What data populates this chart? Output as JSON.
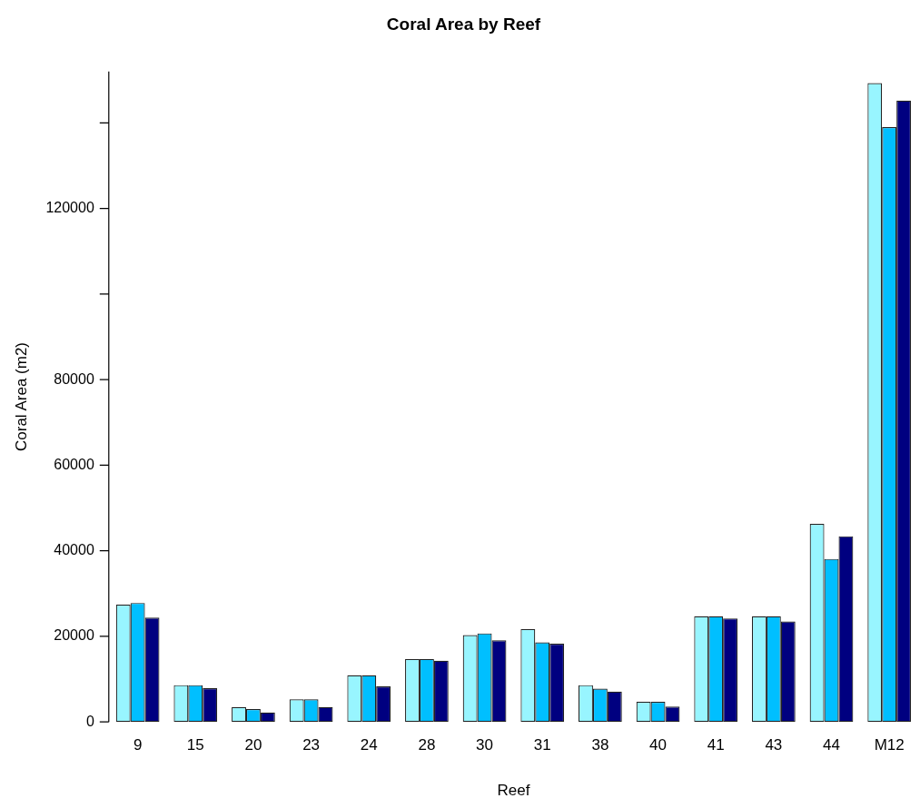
{
  "chart_data": {
    "type": "bar",
    "title": "Coral Area by Reef",
    "xlabel": "Reef",
    "ylabel": "Coral Area (m2)",
    "categories": [
      "9",
      "15",
      "20",
      "23",
      "24",
      "28",
      "30",
      "31",
      "38",
      "40",
      "41",
      "43",
      "44",
      "M12"
    ],
    "series": [
      {
        "color": "#98f5ff",
        "values": [
          27400,
          8600,
          3500,
          5300,
          10900,
          14700,
          20300,
          21700,
          8600,
          4700,
          24700,
          24700,
          46300,
          149300
        ]
      },
      {
        "color": "#00bfff",
        "values": [
          27800,
          8600,
          3000,
          5300,
          10900,
          14700,
          20700,
          18600,
          7800,
          4700,
          24700,
          24700,
          38100,
          139000
        ]
      },
      {
        "color": "#000080",
        "values": [
          24400,
          7900,
          2200,
          3500,
          8300,
          14300,
          19100,
          18300,
          7100,
          3600,
          24200,
          23500,
          43400,
          145200
        ]
      }
    ],
    "ylim": [
      0,
      152000
    ],
    "yticks": [
      0,
      20000,
      40000,
      60000,
      80000,
      {
        "value": 100000,
        "label": null
      },
      120000,
      {
        "value": 140000,
        "label": null
      }
    ],
    "grid": false,
    "legend": false
  }
}
